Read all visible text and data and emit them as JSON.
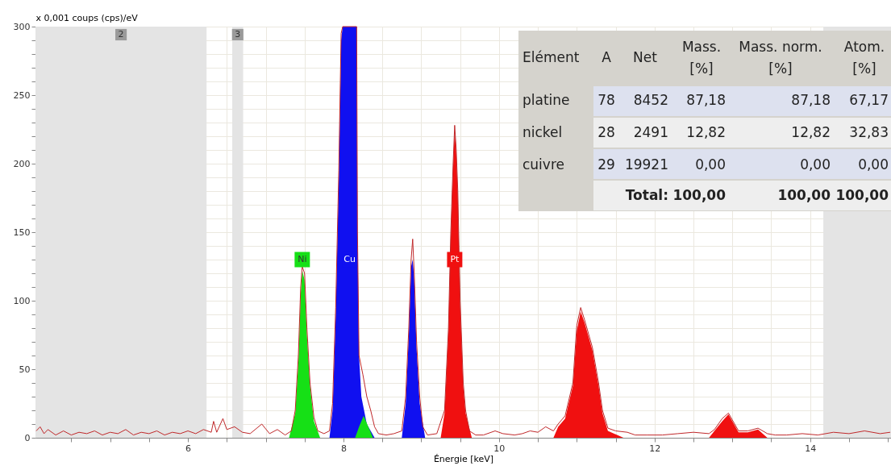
{
  "chart_data": {
    "type": "line",
    "xlabel": "Énergie [keV]",
    "ylabel": "x 0,001 coups (cps)/eV",
    "xlim": [
      4.04,
      15.04
    ],
    "ylim": [
      0,
      300
    ],
    "xticks": [
      {
        "value": 4.5,
        "label": null
      },
      {
        "value": 5,
        "label": null
      },
      {
        "value": 5.5,
        "label": null
      },
      6,
      {
        "value": 6.5,
        "label": null
      },
      {
        "value": 7,
        "label": null
      },
      {
        "value": 7.5,
        "label": null
      },
      8,
      {
        "value": 8.5,
        "label": null
      },
      {
        "value": 9,
        "label": null
      },
      {
        "value": 9.5,
        "label": null
      },
      10,
      {
        "value": 10.5,
        "label": null
      },
      {
        "value": 11,
        "label": null
      },
      {
        "value": 11.5,
        "label": null
      },
      12,
      {
        "value": 12.5,
        "label": null
      },
      {
        "value": 13,
        "label": null
      },
      {
        "value": 13.5,
        "label": null
      },
      14,
      {
        "value": 14.5,
        "label": null
      },
      {
        "value": 15,
        "label": null
      }
    ],
    "yticks": [
      0,
      {
        "value": 10,
        "label": null
      },
      {
        "value": 20,
        "label": null
      },
      {
        "value": 30,
        "label": null
      },
      {
        "value": 40,
        "label": null
      },
      50,
      {
        "value": 60,
        "label": null
      },
      {
        "value": 70,
        "label": null
      },
      {
        "value": 80,
        "label": null
      },
      {
        "value": 90,
        "label": null
      },
      100,
      {
        "value": 110,
        "label": null
      },
      {
        "value": 120,
        "label": null
      },
      {
        "value": 130,
        "label": null
      },
      {
        "value": 140,
        "label": null
      },
      150,
      {
        "value": 160,
        "label": null
      },
      {
        "value": 170,
        "label": null
      },
      {
        "value": 180,
        "label": null
      },
      {
        "value": 190,
        "label": null
      },
      200,
      {
        "value": 210,
        "label": null
      },
      {
        "value": 220,
        "label": null
      },
      {
        "value": 230,
        "label": null
      },
      {
        "value": 240,
        "label": null
      },
      250,
      {
        "value": 260,
        "label": null
      },
      {
        "value": 270,
        "label": null
      },
      {
        "value": 280,
        "label": null
      },
      {
        "value": 290,
        "label": null
      },
      300
    ],
    "grid": true,
    "bands": [
      {
        "axis": "x",
        "from": 4.04,
        "to": 6.24,
        "label": "2",
        "color": "#e4e4e4"
      },
      {
        "axis": "x",
        "from": 6.57,
        "to": 6.71,
        "label": "3",
        "color": "#e4e4e4"
      },
      {
        "axis": "x",
        "from": 14.17,
        "to": 15.04,
        "color": "#e4e4e4"
      }
    ],
    "series": [
      {
        "name": "Ni",
        "type": "area",
        "color": "#16e016",
        "x": [
          7.3,
          7.38,
          7.42,
          7.45,
          7.47,
          7.5,
          7.53,
          7.57,
          7.62,
          7.7,
          8.15,
          8.2,
          8.26,
          8.32,
          8.38
        ],
        "values": [
          0,
          18,
          55,
          105,
          122,
          115,
          75,
          38,
          12,
          0,
          0,
          8,
          16,
          8,
          0
        ]
      },
      {
        "name": "Cu",
        "type": "area",
        "color": "#1010f0",
        "x": [
          7.82,
          7.86,
          7.9,
          7.94,
          7.97,
          7.99,
          8.17,
          8.18,
          8.2,
          8.23,
          8.3,
          8.4,
          8.75,
          8.8,
          8.84,
          8.87,
          8.89,
          8.91,
          8.94,
          8.98,
          9.05
        ],
        "values": [
          0,
          20,
          90,
          190,
          290,
          300,
          300,
          150,
          60,
          30,
          10,
          0,
          0,
          25,
          75,
          125,
          130,
          115,
          65,
          25,
          0
        ]
      },
      {
        "name": "Pt",
        "type": "area",
        "color": "#f01010",
        "x": [
          9.25,
          9.3,
          9.35,
          9.38,
          9.41,
          9.43,
          9.45,
          9.47,
          9.5,
          9.54,
          9.57,
          9.65,
          10.7,
          10.76,
          10.85,
          10.95,
          11.0,
          11.05,
          11.1,
          11.2,
          11.28,
          11.33,
          11.4,
          11.6,
          12.7,
          12.77,
          12.87,
          12.95,
          13.0,
          13.08,
          13.2,
          13.33,
          13.45
        ],
        "values": [
          0,
          18,
          78,
          148,
          198,
          225,
          208,
          178,
          98,
          38,
          18,
          0,
          0,
          8,
          14,
          38,
          78,
          92,
          84,
          64,
          38,
          18,
          5,
          0,
          0,
          5,
          12,
          17,
          12,
          4,
          4,
          6,
          0
        ]
      },
      {
        "color": "#c0282a",
        "x": [
          4.05,
          4.1,
          4.15,
          4.2,
          4.3,
          4.4,
          4.5,
          4.6,
          4.7,
          4.8,
          4.9,
          5.0,
          5.1,
          5.2,
          5.3,
          5.4,
          5.5,
          5.6,
          5.7,
          5.8,
          5.9,
          6.0,
          6.1,
          6.2,
          6.3,
          6.33,
          6.37,
          6.45,
          6.5,
          6.6,
          6.7,
          6.8,
          6.95,
          7.05,
          7.15,
          7.25,
          7.33,
          7.38,
          7.42,
          7.45,
          7.47,
          7.5,
          7.53,
          7.57,
          7.62,
          7.67,
          7.75,
          7.82,
          7.86,
          7.9,
          7.94,
          7.97,
          7.99,
          8.17,
          8.18,
          8.2,
          8.25,
          8.3,
          8.35,
          8.4,
          8.45,
          8.55,
          8.65,
          8.75,
          8.8,
          8.84,
          8.87,
          8.89,
          8.91,
          8.94,
          8.98,
          9.02,
          9.08,
          9.2,
          9.3,
          9.35,
          9.38,
          9.41,
          9.43,
          9.45,
          9.47,
          9.5,
          9.54,
          9.57,
          9.62,
          9.7,
          9.8,
          9.95,
          10.05,
          10.2,
          10.3,
          10.4,
          10.5,
          10.6,
          10.7,
          10.76,
          10.85,
          10.95,
          11.0,
          11.05,
          11.1,
          11.2,
          11.28,
          11.33,
          11.4,
          11.5,
          11.65,
          11.75,
          11.9,
          12.1,
          12.3,
          12.5,
          12.7,
          12.77,
          12.87,
          12.95,
          13.0,
          13.08,
          13.2,
          13.33,
          13.45,
          13.55,
          13.7,
          13.9,
          14.1,
          14.3,
          14.5,
          14.7,
          14.9,
          15.03
        ],
        "values": [
          5,
          8,
          3,
          6,
          2,
          5,
          2,
          4,
          3,
          5,
          2,
          4,
          3,
          6,
          2,
          4,
          3,
          5,
          2,
          4,
          3,
          5,
          3,
          6,
          4,
          12,
          4,
          14,
          6,
          8,
          4,
          3,
          10,
          3,
          6,
          2,
          5,
          20,
          60,
          110,
          125,
          120,
          80,
          40,
          15,
          5,
          3,
          5,
          25,
          95,
          195,
          295,
          300,
          300,
          150,
          60,
          46,
          30,
          20,
          8,
          3,
          2,
          3,
          5,
          30,
          80,
          130,
          145,
          120,
          70,
          30,
          8,
          2,
          3,
          20,
          80,
          150,
          200,
          228,
          210,
          180,
          100,
          40,
          20,
          5,
          2,
          2,
          5,
          3,
          2,
          3,
          5,
          4,
          8,
          5,
          10,
          16,
          40,
          82,
          95,
          86,
          66,
          40,
          20,
          7,
          5,
          4,
          2,
          2,
          2,
          3,
          4,
          3,
          6,
          14,
          18,
          13,
          5,
          5,
          7,
          3,
          2,
          2,
          3,
          2,
          4,
          3,
          5,
          3,
          4
        ]
      }
    ],
    "annotations": [
      "Elément",
      "A",
      "Net",
      "Mass.\n[%]",
      "Mass. norm.\n[%]",
      "Atom.\n[%]",
      "platine",
      "78",
      "8452",
      "87,18",
      "87,18",
      "67,17",
      "nickel",
      "28",
      "2491",
      "12,82",
      "12,82",
      "32,83",
      "cuivre",
      "29",
      "19921",
      "0,00",
      "0,00",
      "0,00",
      "Total:",
      "100,00",
      "100,00",
      "100,00"
    ]
  }
}
